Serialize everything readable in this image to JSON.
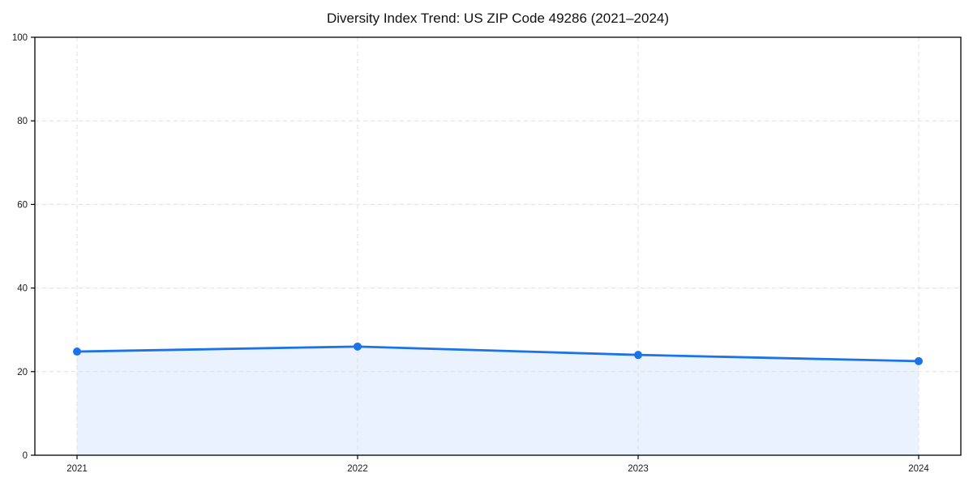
{
  "chart_data": {
    "type": "area",
    "title": "Diversity Index Trend: US ZIP Code 49286 (2021–2024)",
    "categories": [
      "2021",
      "2022",
      "2023",
      "2024"
    ],
    "series": [
      {
        "name": "Diversity Index",
        "values": [
          24.8,
          26.0,
          24.0,
          22.5
        ]
      }
    ],
    "xlabel": "",
    "ylabel": "",
    "ylim": [
      0,
      100
    ],
    "yticks": [
      0,
      20,
      40,
      60,
      80,
      100
    ],
    "grid": true,
    "legend": "none",
    "colors": {
      "line": "#1a73e8",
      "marker": "#1a73e8",
      "fill": "rgba(26,115,232,0.09)",
      "grid": "#e0e0e0",
      "axis": "#000000",
      "text": "#1a1a1a",
      "background": "#ffffff"
    }
  }
}
